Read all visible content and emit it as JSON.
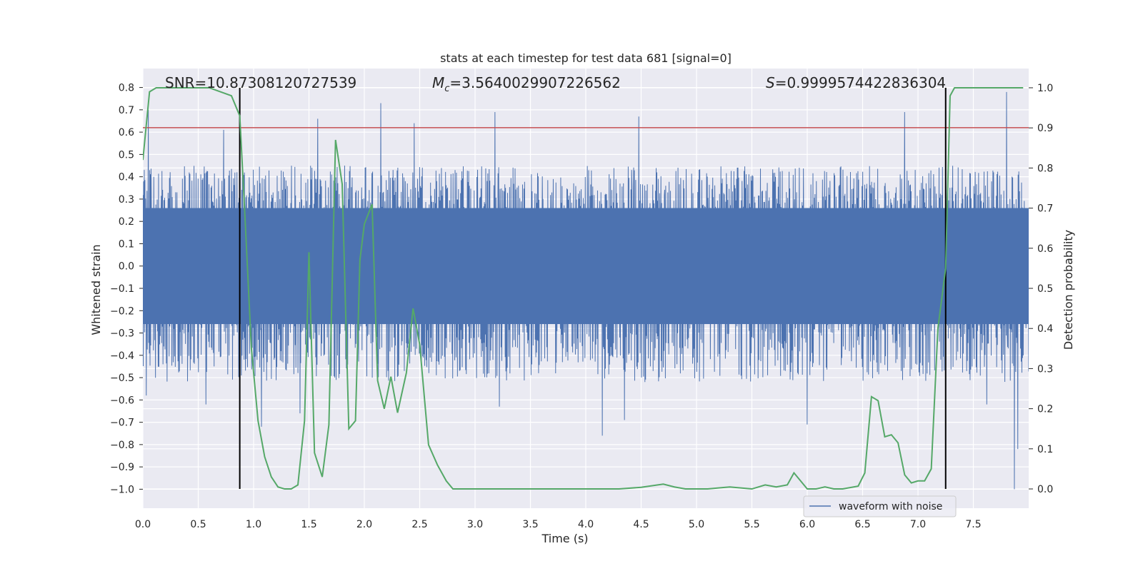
{
  "chart_data": {
    "type": "line",
    "title": "stats at each timestep for test data 681 [signal=0]",
    "xlabel": "Time (s)",
    "ylabel": "Whitened strain",
    "y2label": "Detection probability",
    "xlim": [
      0.0,
      8.0
    ],
    "ylim": [
      -1.085,
      0.885
    ],
    "y2lim": [
      -0.048,
      1.048
    ],
    "xticks": [
      0.0,
      0.5,
      1.0,
      1.5,
      2.0,
      2.5,
      3.0,
      3.5,
      4.0,
      4.5,
      5.0,
      5.5,
      6.0,
      6.5,
      7.0,
      7.5
    ],
    "xtick_labels": [
      "0.0",
      "0.5",
      "1.0",
      "1.5",
      "2.0",
      "2.5",
      "3.0",
      "3.5",
      "4.0",
      "4.5",
      "5.0",
      "5.5",
      "6.0",
      "6.5",
      "7.0",
      "7.5"
    ],
    "yticks": [
      0.8,
      0.7,
      0.6,
      0.5,
      0.4,
      0.3,
      0.2,
      0.1,
      0.0,
      -0.1,
      -0.2,
      -0.3,
      -0.4,
      -0.5,
      -0.6,
      -0.7,
      -0.8,
      -0.9,
      -1.0
    ],
    "ytick_labels": [
      "0.8",
      "0.7",
      "0.6",
      "0.5",
      "0.4",
      "0.3",
      "0.2",
      "0.1",
      "0.0",
      "−0.1",
      "−0.2",
      "−0.3",
      "−0.4",
      "−0.5",
      "−0.6",
      "−0.7",
      "−0.8",
      "−0.9",
      "−1.0"
    ],
    "y2ticks": [
      1.0,
      0.9,
      0.8,
      0.7,
      0.6,
      0.5,
      0.4,
      0.3,
      0.2,
      0.1,
      0.0
    ],
    "y2tick_labels": [
      "1.0",
      "0.9",
      "0.8",
      "0.7",
      "0.6",
      "0.5",
      "0.4",
      "0.3",
      "0.2",
      "0.1",
      "0.0"
    ],
    "grid": true,
    "background": "#eaeaf2",
    "annotations": {
      "snr": "SNR=10.87308120727539",
      "mc_symbol": "M",
      "mc_subscript": "c",
      "mc_value": "=3.5640029907226562",
      "s_symbol": "S",
      "s_value": "=0.9999574422836304"
    },
    "threshold": {
      "value": 0.62,
      "color": "#c44e52"
    },
    "vlines": [
      {
        "x": 0.875,
        "color": "#000000"
      },
      {
        "x": 7.25,
        "color": "#000000"
      }
    ],
    "waveform": {
      "name": "waveform with noise",
      "color": "#4c72b0",
      "x_range": [
        0.0,
        8.0
      ],
      "core_amplitude": 0.26,
      "noise_envelope": [
        0.45,
        0.52
      ],
      "peaks": [
        {
          "x": 0.05,
          "y": 0.7
        },
        {
          "x": 0.73,
          "y": 0.61
        },
        {
          "x": 0.875,
          "y": 0.57
        },
        {
          "x": 1.58,
          "y": 0.66
        },
        {
          "x": 2.15,
          "y": 0.73
        },
        {
          "x": 2.45,
          "y": 0.64
        },
        {
          "x": 3.18,
          "y": 0.69
        },
        {
          "x": 4.48,
          "y": 0.67
        },
        {
          "x": 6.88,
          "y": 0.69
        },
        {
          "x": 7.8,
          "y": 0.78
        },
        {
          "x": 0.03,
          "y": -0.58
        },
        {
          "x": 0.57,
          "y": -0.62
        },
        {
          "x": 1.07,
          "y": -0.72
        },
        {
          "x": 1.42,
          "y": -0.66
        },
        {
          "x": 3.22,
          "y": -0.63
        },
        {
          "x": 4.15,
          "y": -0.76
        },
        {
          "x": 4.35,
          "y": -0.69
        },
        {
          "x": 6.0,
          "y": -0.71
        },
        {
          "x": 7.62,
          "y": -0.62
        },
        {
          "x": 7.87,
          "y": -1.0
        },
        {
          "x": 7.9,
          "y": -0.82
        }
      ]
    },
    "detection_probability": {
      "color": "#55a868",
      "x": [
        0.0,
        0.06,
        0.12,
        0.2,
        0.4,
        0.6,
        0.8,
        0.875,
        0.92,
        0.98,
        1.04,
        1.1,
        1.16,
        1.22,
        1.28,
        1.34,
        1.4,
        1.46,
        1.5,
        1.55,
        1.62,
        1.68,
        1.74,
        1.8,
        1.86,
        1.92,
        1.96,
        2.0,
        2.07,
        2.12,
        2.18,
        2.24,
        2.3,
        2.38,
        2.44,
        2.5,
        2.58,
        2.66,
        2.74,
        2.8,
        2.9,
        3.0,
        3.3,
        3.6,
        4.0,
        4.3,
        4.5,
        4.7,
        4.8,
        4.9,
        5.1,
        5.3,
        5.5,
        5.62,
        5.72,
        5.82,
        5.88,
        5.94,
        6.0,
        6.08,
        6.16,
        6.24,
        6.32,
        6.46,
        6.52,
        6.58,
        6.64,
        6.7,
        6.76,
        6.82,
        6.88,
        6.94,
        7.0,
        7.06,
        7.12,
        7.18,
        7.25,
        7.29,
        7.33,
        7.4,
        7.6,
        7.8,
        7.95
      ],
      "y": [
        0.82,
        0.99,
        1.0,
        1.0,
        1.0,
        1.0,
        0.98,
        0.93,
        0.69,
        0.35,
        0.17,
        0.08,
        0.03,
        0.005,
        0.0,
        0.0,
        0.01,
        0.17,
        0.59,
        0.09,
        0.03,
        0.16,
        0.87,
        0.76,
        0.15,
        0.17,
        0.57,
        0.66,
        0.71,
        0.27,
        0.2,
        0.28,
        0.19,
        0.29,
        0.45,
        0.36,
        0.11,
        0.06,
        0.02,
        0.0,
        0.0,
        0.0,
        0.0,
        0.0,
        0.0,
        0.0,
        0.004,
        0.012,
        0.005,
        0.0,
        0.0,
        0.005,
        0.0,
        0.01,
        0.005,
        0.01,
        0.04,
        0.02,
        0.0,
        0.0,
        0.005,
        0.0,
        0.0,
        0.007,
        0.04,
        0.23,
        0.22,
        0.13,
        0.135,
        0.115,
        0.035,
        0.015,
        0.02,
        0.02,
        0.05,
        0.4,
        0.55,
        0.98,
        1.0,
        1.0,
        1.0,
        1.0,
        1.0
      ]
    },
    "legend": {
      "label": "waveform with noise",
      "placement": "lower-right"
    }
  }
}
